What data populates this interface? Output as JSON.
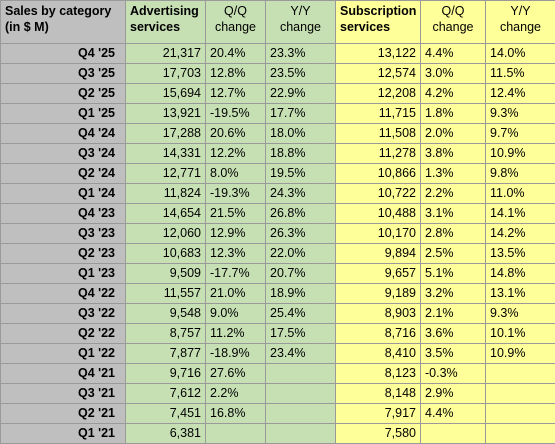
{
  "headers": {
    "label": "Sales by category (in $ M)",
    "advertising": "Advertising services",
    "ad_qq": "Q/Q change",
    "ad_yy": "Y/Y change",
    "subscription": "Subscription services",
    "sub_qq": "Q/Q change",
    "sub_yy": "Y/Y change"
  },
  "rows": [
    {
      "quarter": "Q4 '25",
      "ad": "21,317",
      "ad_qq": "20.4%",
      "ad_yy": "23.3%",
      "sub": "13,122",
      "sub_qq": "4.4%",
      "sub_yy": "14.0%"
    },
    {
      "quarter": "Q3 '25",
      "ad": "17,703",
      "ad_qq": "12.8%",
      "ad_yy": "23.5%",
      "sub": "12,574",
      "sub_qq": "3.0%",
      "sub_yy": "11.5%"
    },
    {
      "quarter": "Q2 '25",
      "ad": "15,694",
      "ad_qq": "12.7%",
      "ad_yy": "22.9%",
      "sub": "12,208",
      "sub_qq": "4.2%",
      "sub_yy": "12.4%"
    },
    {
      "quarter": "Q1 '25",
      "ad": "13,921",
      "ad_qq": "-19.5%",
      "ad_yy": "17.7%",
      "sub": "11,715",
      "sub_qq": "1.8%",
      "sub_yy": "9.3%"
    },
    {
      "quarter": "Q4 '24",
      "ad": "17,288",
      "ad_qq": "20.6%",
      "ad_yy": "18.0%",
      "sub": "11,508",
      "sub_qq": "2.0%",
      "sub_yy": "9.7%"
    },
    {
      "quarter": "Q3 '24",
      "ad": "14,331",
      "ad_qq": "12.2%",
      "ad_yy": "18.8%",
      "sub": "11,278",
      "sub_qq": "3.8%",
      "sub_yy": "10.9%"
    },
    {
      "quarter": "Q2 '24",
      "ad": "12,771",
      "ad_qq": "8.0%",
      "ad_yy": "19.5%",
      "sub": "10,866",
      "sub_qq": "1.3%",
      "sub_yy": "9.8%"
    },
    {
      "quarter": "Q1 '24",
      "ad": "11,824",
      "ad_qq": "-19.3%",
      "ad_yy": "24.3%",
      "sub": "10,722",
      "sub_qq": "2.2%",
      "sub_yy": "11.0%"
    },
    {
      "quarter": "Q4 '23",
      "ad": "14,654",
      "ad_qq": "21.5%",
      "ad_yy": "26.8%",
      "sub": "10,488",
      "sub_qq": "3.1%",
      "sub_yy": "14.1%"
    },
    {
      "quarter": "Q3 '23",
      "ad": "12,060",
      "ad_qq": "12.9%",
      "ad_yy": "26.3%",
      "sub": "10,170",
      "sub_qq": "2.8%",
      "sub_yy": "14.2%"
    },
    {
      "quarter": "Q2 '23",
      "ad": "10,683",
      "ad_qq": "12.3%",
      "ad_yy": "22.0%",
      "sub": "9,894",
      "sub_qq": "2.5%",
      "sub_yy": "13.5%"
    },
    {
      "quarter": "Q1 '23",
      "ad": "9,509",
      "ad_qq": "-17.7%",
      "ad_yy": "20.7%",
      "sub": "9,657",
      "sub_qq": "5.1%",
      "sub_yy": "14.8%"
    },
    {
      "quarter": "Q4 '22",
      "ad": "11,557",
      "ad_qq": "21.0%",
      "ad_yy": "18.9%",
      "sub": "9,189",
      "sub_qq": "3.2%",
      "sub_yy": "13.1%"
    },
    {
      "quarter": "Q3 '22",
      "ad": "9,548",
      "ad_qq": "9.0%",
      "ad_yy": "25.4%",
      "sub": "8,903",
      "sub_qq": "2.1%",
      "sub_yy": "9.3%"
    },
    {
      "quarter": "Q2 '22",
      "ad": "8,757",
      "ad_qq": "11.2%",
      "ad_yy": "17.5%",
      "sub": "8,716",
      "sub_qq": "3.6%",
      "sub_yy": "10.1%"
    },
    {
      "quarter": "Q1 '22",
      "ad": "7,877",
      "ad_qq": "-18.9%",
      "ad_yy": "23.4%",
      "sub": "8,410",
      "sub_qq": "3.5%",
      "sub_yy": "10.9%"
    },
    {
      "quarter": "Q4 '21",
      "ad": "9,716",
      "ad_qq": "27.6%",
      "ad_yy": "",
      "sub": "8,123",
      "sub_qq": "-0.3%",
      "sub_yy": ""
    },
    {
      "quarter": "Q3 '21",
      "ad": "7,612",
      "ad_qq": "2.2%",
      "ad_yy": "",
      "sub": "8,148",
      "sub_qq": "2.9%",
      "sub_yy": ""
    },
    {
      "quarter": "Q2 '21",
      "ad": "7,451",
      "ad_qq": "16.8%",
      "ad_yy": "",
      "sub": "7,917",
      "sub_qq": "4.4%",
      "sub_yy": ""
    },
    {
      "quarter": "Q1 '21",
      "ad": "6,381",
      "ad_qq": "",
      "ad_yy": "",
      "sub": "7,580",
      "sub_qq": "",
      "sub_yy": ""
    }
  ],
  "colors": {
    "label_column": "#bfbfbf",
    "advertising_block": "#c6e0b4",
    "subscription_block": "#ffff99",
    "gridline": "#9a9a9a"
  }
}
